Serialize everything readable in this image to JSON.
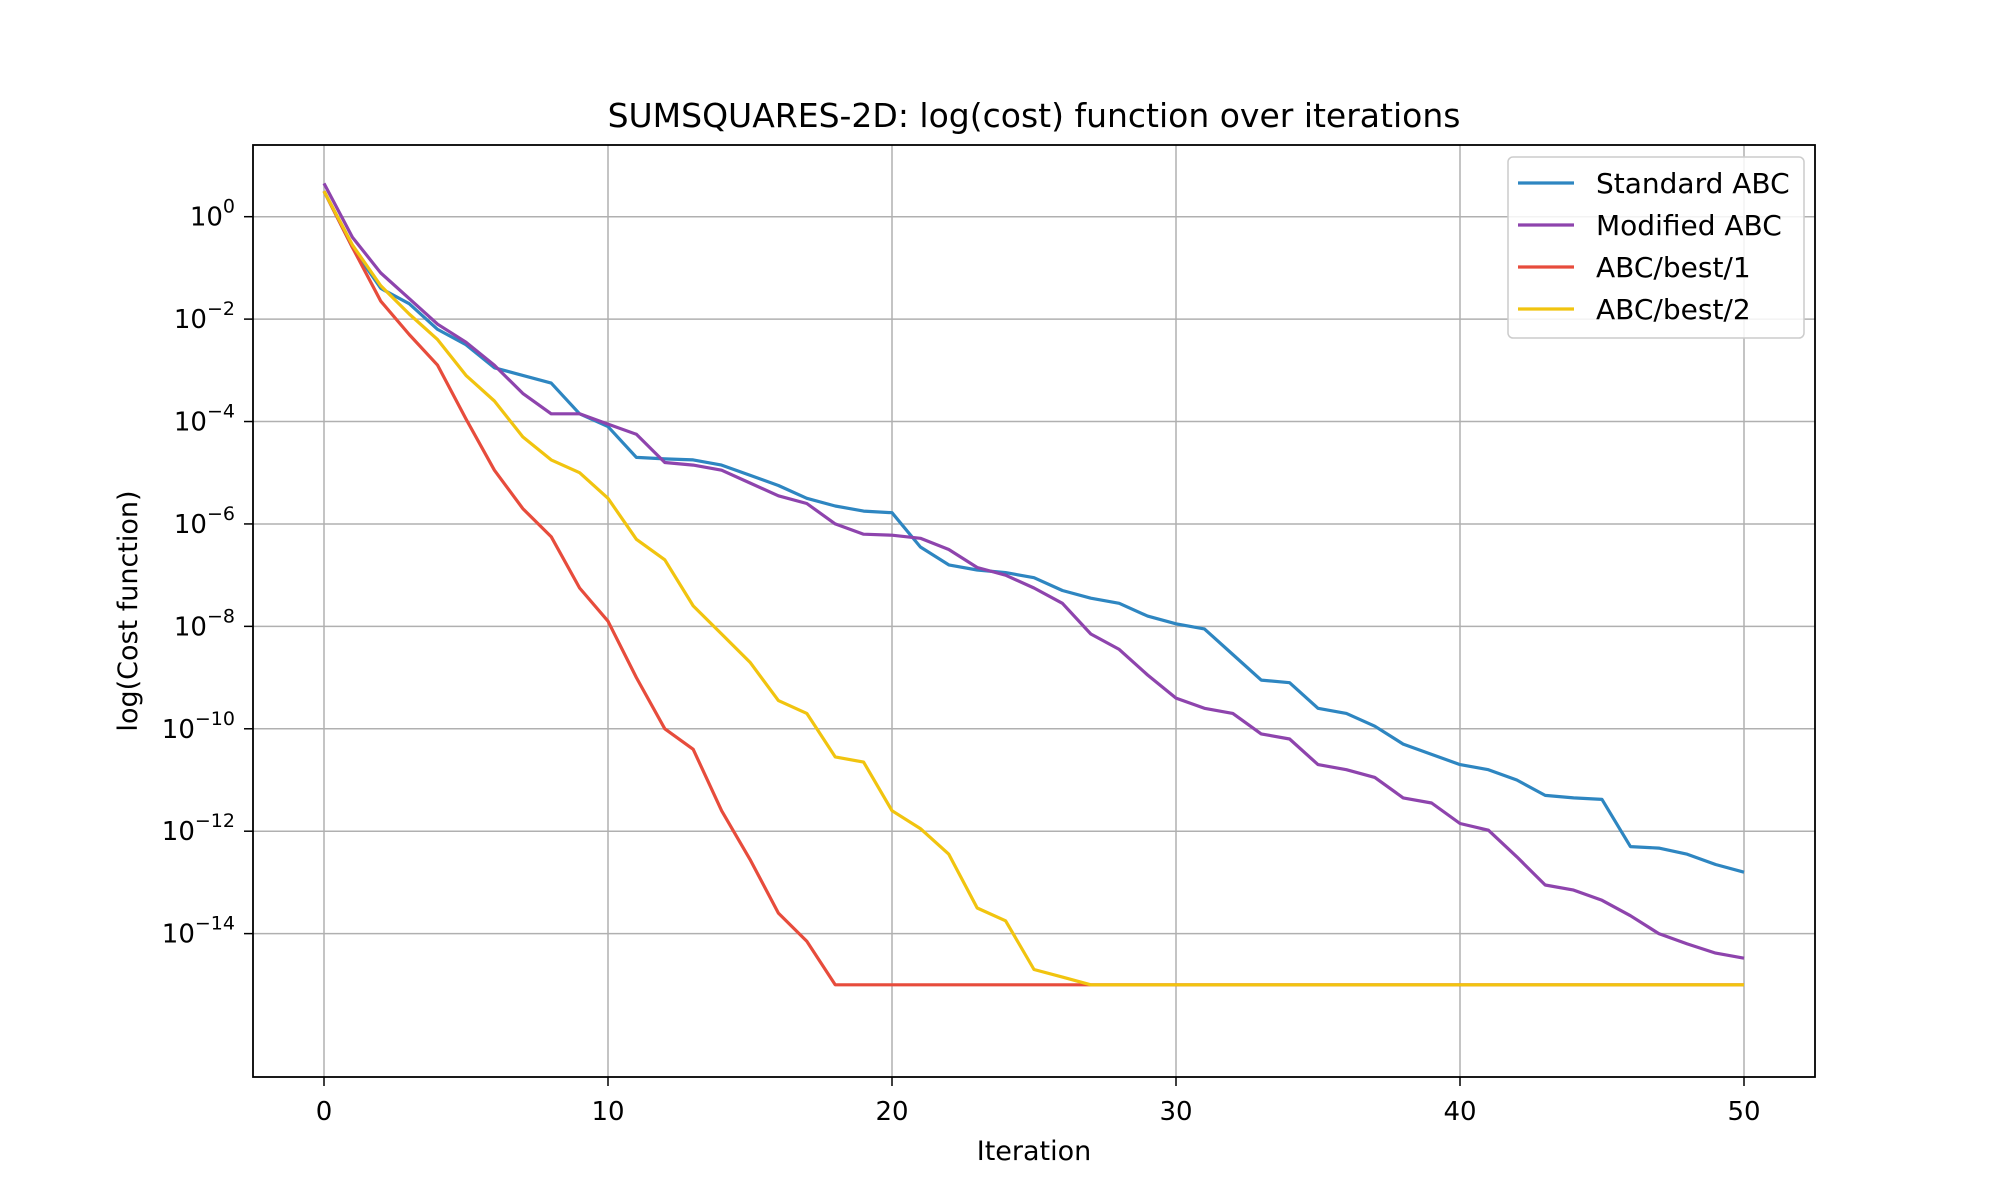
{
  "chart_data": {
    "type": "line",
    "title": "SUMSQUARES-2D: log(cost) function over iterations",
    "xlabel": "Iteration",
    "ylabel": "log(Cost function)",
    "xlim": [
      -2.5,
      52.5
    ],
    "ylim": [
      -16.8,
      1.4
    ],
    "y_scale": "log10",
    "grid": true,
    "legend_position": "top-right",
    "x_ticks": [
      0,
      10,
      20,
      30,
      40,
      50
    ],
    "x_tick_labels": [
      "0",
      "10",
      "20",
      "30",
      "40",
      "50"
    ],
    "y_ticks": [
      0,
      -2,
      -4,
      -6,
      -8,
      -10,
      -12,
      -14
    ],
    "y_tick_exponents": [
      "0",
      "−2",
      "−4",
      "−6",
      "−8",
      "−10",
      "−12",
      "−14"
    ],
    "x": [
      0,
      1,
      2,
      3,
      4,
      5,
      6,
      7,
      8,
      9,
      10,
      11,
      12,
      13,
      14,
      15,
      16,
      17,
      18,
      19,
      20,
      21,
      22,
      23,
      24,
      25,
      26,
      27,
      28,
      29,
      30,
      31,
      32,
      33,
      34,
      35,
      36,
      37,
      38,
      39,
      40,
      41,
      42,
      43,
      44,
      45,
      46,
      47,
      48,
      49,
      50
    ],
    "series": [
      {
        "name": "Standard ABC",
        "color": "#2e86c1",
        "values": [
          0.5,
          -0.6,
          -1.4,
          -1.7,
          -2.2,
          -2.5,
          -2.95,
          -3.1,
          -3.25,
          -3.85,
          -4.1,
          -4.7,
          -4.73,
          -4.75,
          -4.85,
          -5.05,
          -5.25,
          -5.5,
          -5.65,
          -5.75,
          -5.78,
          -6.45,
          -6.8,
          -6.9,
          -6.95,
          -7.05,
          -7.3,
          -7.45,
          -7.55,
          -7.8,
          -7.95,
          -8.05,
          -8.55,
          -9.05,
          -9.1,
          -9.6,
          -9.7,
          -9.95,
          -10.3,
          -10.5,
          -10.7,
          -10.8,
          -11.0,
          -11.3,
          -11.35,
          -11.38,
          -12.3,
          -12.33,
          -12.45,
          -12.65,
          -12.8
        ]
      },
      {
        "name": "Modified ABC",
        "color": "#8e44ad",
        "values": [
          0.65,
          -0.4,
          -1.1,
          -1.6,
          -2.1,
          -2.45,
          -2.9,
          -3.45,
          -3.85,
          -3.85,
          -4.05,
          -4.25,
          -4.8,
          -4.85,
          -4.95,
          -5.2,
          -5.45,
          -5.6,
          -6.0,
          -6.2,
          -6.22,
          -6.28,
          -6.5,
          -6.85,
          -7.0,
          -7.25,
          -7.55,
          -8.15,
          -8.45,
          -8.95,
          -9.4,
          -9.6,
          -9.7,
          -10.1,
          -10.2,
          -10.7,
          -10.8,
          -10.95,
          -11.35,
          -11.45,
          -11.85,
          -11.98,
          -12.5,
          -13.05,
          -13.15,
          -13.35,
          -13.65,
          -14.0,
          -14.2,
          -14.38,
          -14.48
        ]
      },
      {
        "name": "ABC/best/1",
        "color": "#e74c3c",
        "values": [
          0.5,
          -0.6,
          -1.65,
          -2.3,
          -2.9,
          -3.95,
          -4.95,
          -5.7,
          -6.25,
          -7.25,
          -7.9,
          -9.0,
          -10.0,
          -10.4,
          -11.6,
          -12.55,
          -13.6,
          -14.15,
          -15.0,
          -15.0,
          -15.0,
          -15.0,
          -15.0,
          -15.0,
          -15.0,
          -15.0,
          -15.0,
          -15.0,
          -15.0,
          -15.0,
          -15.0,
          -15.0,
          -15.0,
          -15.0,
          -15.0,
          -15.0,
          -15.0,
          -15.0,
          -15.0,
          -15.0,
          -15.0,
          -15.0,
          -15.0,
          -15.0,
          -15.0,
          -15.0,
          -15.0,
          -15.0,
          -15.0,
          -15.0,
          -15.0
        ]
      },
      {
        "name": "ABC/best/2",
        "color": "#f1c40f",
        "values": [
          0.5,
          -0.55,
          -1.35,
          -1.9,
          -2.4,
          -3.1,
          -3.6,
          -4.3,
          -4.75,
          -5.0,
          -5.5,
          -6.3,
          -6.7,
          -7.6,
          -8.15,
          -8.7,
          -9.45,
          -9.7,
          -10.55,
          -10.65,
          -11.6,
          -11.95,
          -12.45,
          -13.5,
          -13.75,
          -14.7,
          -14.85,
          -15.0,
          -15.0,
          -15.0,
          -15.0,
          -15.0,
          -15.0,
          -15.0,
          -15.0,
          -15.0,
          -15.0,
          -15.0,
          -15.0,
          -15.0,
          -15.0,
          -15.0,
          -15.0,
          -15.0,
          -15.0,
          -15.0,
          -15.0,
          -15.0,
          -15.0,
          -15.0,
          -15.0
        ]
      }
    ]
  }
}
